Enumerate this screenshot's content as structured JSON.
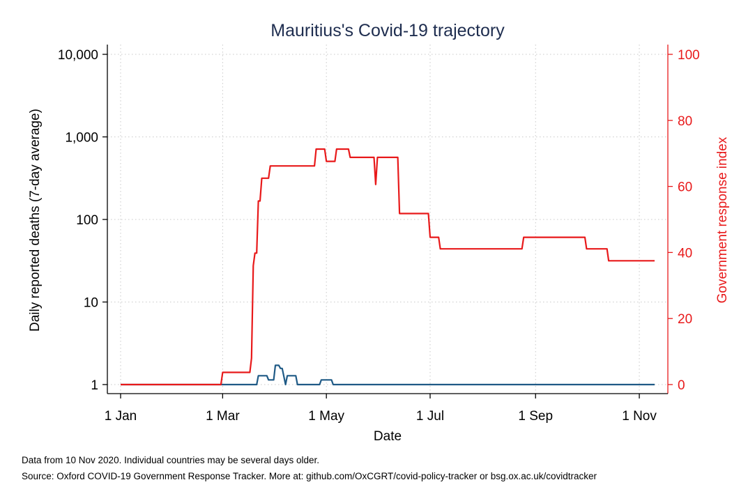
{
  "chart_data": {
    "type": "line",
    "title": "Mauritius's Covid-19 trajectory",
    "xlabel": "Date",
    "ylabel": "Daily reported deaths (7-day average)",
    "ylabel_right": "Government response index",
    "x_ticks": [
      "1 Jan",
      "1 Mar",
      "1 May",
      "1 Jul",
      "1 Sep",
      "1 Nov"
    ],
    "y_ticks": [
      "1",
      "10",
      "100",
      "1,000",
      "10,000"
    ],
    "y_tick_values": [
      1,
      10,
      100,
      1000,
      10000
    ],
    "y_right_ticks": [
      "0",
      "20",
      "40",
      "60",
      "80",
      "100"
    ],
    "y_right_tick_values": [
      0,
      20,
      40,
      60,
      80,
      100
    ],
    "x_range": [
      "2020-01-01",
      "2020-11-10"
    ],
    "ylim": [
      1,
      10000
    ],
    "ylim_right": [
      0,
      100
    ],
    "y_scale": "log",
    "grid": true,
    "colors": {
      "deaths": "#1f5a86",
      "stringency": "#e8191a",
      "title": "#1e2d4f",
      "grid": "#c8c8c8"
    },
    "series": [
      {
        "axis": "left",
        "values": [
          [
            "2020-01-01",
            1
          ],
          [
            "2020-03-21",
            1
          ],
          [
            "2020-03-22",
            1.28
          ],
          [
            "2020-03-27",
            1.28
          ],
          [
            "2020-03-28",
            1.14
          ],
          [
            "2020-03-31",
            1.14
          ],
          [
            "2020-04-01",
            1.71
          ],
          [
            "2020-04-03",
            1.71
          ],
          [
            "2020-04-04",
            1.57
          ],
          [
            "2020-04-05",
            1.57
          ],
          [
            "2020-04-07",
            1
          ],
          [
            "2020-04-08",
            1.28
          ],
          [
            "2020-04-13",
            1.28
          ],
          [
            "2020-04-14",
            1
          ],
          [
            "2020-04-27",
            1
          ],
          [
            "2020-04-28",
            1.14
          ],
          [
            "2020-05-04",
            1.14
          ],
          [
            "2020-05-05",
            1
          ],
          [
            "2020-11-10",
            1
          ]
        ]
      },
      {
        "axis": "right",
        "values": [
          [
            "2020-01-01",
            0
          ],
          [
            "2020-02-29",
            0
          ],
          [
            "2020-03-01",
            3.7
          ],
          [
            "2020-03-17",
            3.7
          ],
          [
            "2020-03-18",
            8
          ],
          [
            "2020-03-19",
            36
          ],
          [
            "2020-03-20",
            39.8
          ],
          [
            "2020-03-21",
            39.8
          ],
          [
            "2020-03-22",
            55.6
          ],
          [
            "2020-03-23",
            55.6
          ],
          [
            "2020-03-24",
            62.5
          ],
          [
            "2020-03-28",
            62.5
          ],
          [
            "2020-03-29",
            66.2
          ],
          [
            "2020-04-24",
            66.2
          ],
          [
            "2020-04-25",
            71.3
          ],
          [
            "2020-04-30",
            71.3
          ],
          [
            "2020-05-01",
            67.6
          ],
          [
            "2020-05-06",
            67.6
          ],
          [
            "2020-05-07",
            71.3
          ],
          [
            "2020-05-14",
            71.3
          ],
          [
            "2020-05-15",
            68.8
          ],
          [
            "2020-05-29",
            68.8
          ],
          [
            "2020-05-30",
            60.6
          ],
          [
            "2020-05-31",
            68.8
          ],
          [
            "2020-06-12",
            68.8
          ],
          [
            "2020-06-13",
            51.8
          ],
          [
            "2020-06-30",
            51.8
          ],
          [
            "2020-07-01",
            44.6
          ],
          [
            "2020-07-06",
            44.6
          ],
          [
            "2020-07-07",
            41.1
          ],
          [
            "2020-08-24",
            41.1
          ],
          [
            "2020-08-25",
            44.6
          ],
          [
            "2020-09-30",
            44.6
          ],
          [
            "2020-10-01",
            41.1
          ],
          [
            "2020-10-13",
            41.1
          ],
          [
            "2020-10-14",
            37.5
          ],
          [
            "2020-11-10",
            37.5
          ]
        ]
      }
    ]
  },
  "notes": {
    "data_note": "Data from 10 Nov 2020. Individual countries may be several days older.",
    "source_note": "Source: Oxford COVID-19 Government Response Tracker. More at: github.com/OxCGRT/covid-policy-tracker or bsg.ox.ac.uk/covidtracker"
  }
}
